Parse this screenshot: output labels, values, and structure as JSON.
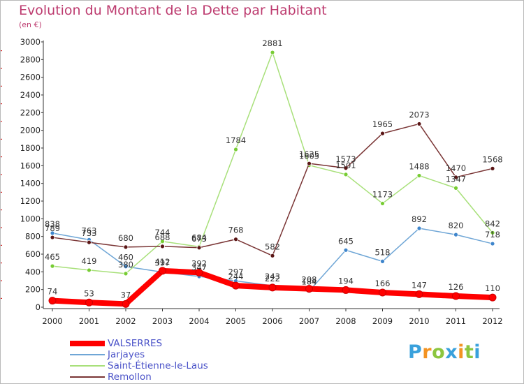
{
  "header": {
    "title": "Evolution du Montant de la Dette par Habitant",
    "subtitle": "(en €)"
  },
  "colors": {
    "title": "#bd3b6f",
    "legend_text": "#4a52c8",
    "axis": "#333333",
    "grid_tick_red": "#cc0000"
  },
  "chart_data": {
    "type": "line",
    "title": "Evolution du Montant de la Dette par Habitant",
    "subtitle": "(en €)",
    "xlabel": "",
    "ylabel": "",
    "x": [
      "2000",
      "2001",
      "2002",
      "2003",
      "2004",
      "2005",
      "2006",
      "2007",
      "2008",
      "2009",
      "2010",
      "2011",
      "2012"
    ],
    "ylim": [
      0,
      3000
    ],
    "yticks": [
      0,
      200,
      400,
      600,
      800,
      1000,
      1200,
      1400,
      1600,
      1800,
      2000,
      2200,
      2400,
      2600,
      2800,
      3000
    ],
    "grid": false,
    "legend_position": "bottom-left",
    "series": [
      {
        "name": "VALSERRES",
        "color": "#ff0000",
        "marker_fill": "#ff0000",
        "width": 8,
        "values": [
          74,
          53,
          37,
          412,
          392,
          244,
          222,
          208,
          194,
          166,
          147,
          126,
          110
        ],
        "labels": [
          "74",
          "53",
          "37",
          "412",
          "392",
          "244",
          "222",
          "208",
          "194",
          "166",
          "147",
          "126",
          "110"
        ]
      },
      {
        "name": "Jarjayes",
        "color": "#6fa6d6",
        "marker_fill": "#3f86cc",
        "width": 1.5,
        "values": [
          838,
          763,
          460,
          397,
          347,
          297,
          243,
          184,
          645,
          518,
          892,
          820,
          718
        ],
        "labels": [
          "838",
          "763",
          "460",
          "397",
          "347",
          "297",
          "243",
          "184",
          "645",
          "518",
          "892",
          "820",
          "718"
        ]
      },
      {
        "name": "Saint-Étienne-le-Laus",
        "color": "#a8e07a",
        "marker_fill": "#77cc33",
        "width": 1.5,
        "values": [
          465,
          419,
          380,
          744,
          684,
          1784,
          2881,
          1605,
          1501,
          1173,
          1488,
          1347,
          842
        ],
        "labels": [
          "465",
          "419",
          "380",
          "744",
          "684",
          "1784",
          "2881",
          "1605",
          "1501",
          "1173",
          "1488",
          "1347",
          "842"
        ]
      },
      {
        "name": "Remollon",
        "color": "#7a3535",
        "marker_fill": "#5a1616",
        "width": 1.5,
        "values": [
          789,
          733,
          680,
          688,
          673,
          768,
          582,
          1625,
          1573,
          1965,
          2073,
          1470,
          1568
        ],
        "labels": [
          "789",
          "733",
          "680",
          "688",
          "673",
          "768",
          "582",
          "1625",
          "1573",
          "1965",
          "2073",
          "1470",
          "1568"
        ]
      }
    ]
  },
  "legend": {
    "items": [
      {
        "label": "VALSERRES",
        "color": "#ff0000",
        "thick": true
      },
      {
        "label": "Jarjayes",
        "color": "#6fa6d6",
        "thick": false
      },
      {
        "label": "Saint-Étienne-le-Laus",
        "color": "#a8e07a",
        "thick": false
      },
      {
        "label": "Remollon",
        "color": "#7a3535",
        "thick": false
      }
    ]
  },
  "logo": {
    "text": "Proxiti",
    "letters": [
      {
        "ch": "P",
        "color": "#3aa1dc"
      },
      {
        "ch": "r",
        "color": "#f39322"
      },
      {
        "ch": "o",
        "color": "#8cc63f"
      },
      {
        "ch": "x",
        "color": "#3aa1dc"
      },
      {
        "ch": "i",
        "color": "#f39322"
      },
      {
        "ch": "t",
        "color": "#8cc63f"
      },
      {
        "ch": "i",
        "color": "#3aa1dc"
      }
    ]
  }
}
